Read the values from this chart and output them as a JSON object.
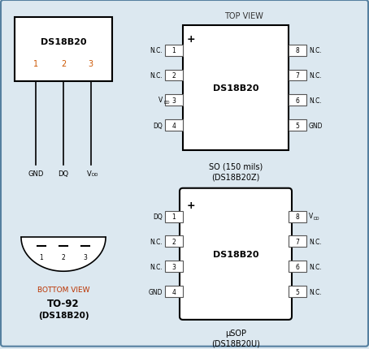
{
  "bg_color": "#dce8f0",
  "border_color": "#5580a0",
  "so_left_pins": [
    {
      "num": "1",
      "label": "N.C."
    },
    {
      "num": "2",
      "label": "N.C."
    },
    {
      "num": "3",
      "label": "VDD"
    },
    {
      "num": "4",
      "label": "DQ"
    }
  ],
  "so_right_pins": [
    {
      "num": "8",
      "label": "N.C."
    },
    {
      "num": "7",
      "label": "N.C."
    },
    {
      "num": "6",
      "label": "N.C."
    },
    {
      "num": "5",
      "label": "GND"
    }
  ],
  "usop_left_pins": [
    {
      "num": "1",
      "label": "DQ"
    },
    {
      "num": "2",
      "label": "N.C."
    },
    {
      "num": "3",
      "label": "N.C."
    },
    {
      "num": "4",
      "label": "GND"
    }
  ],
  "usop_right_pins": [
    {
      "num": "8",
      "label": "VDD"
    },
    {
      "num": "7",
      "label": "N.C."
    },
    {
      "num": "6",
      "label": "N.C."
    },
    {
      "num": "5",
      "label": "N.C."
    }
  ]
}
